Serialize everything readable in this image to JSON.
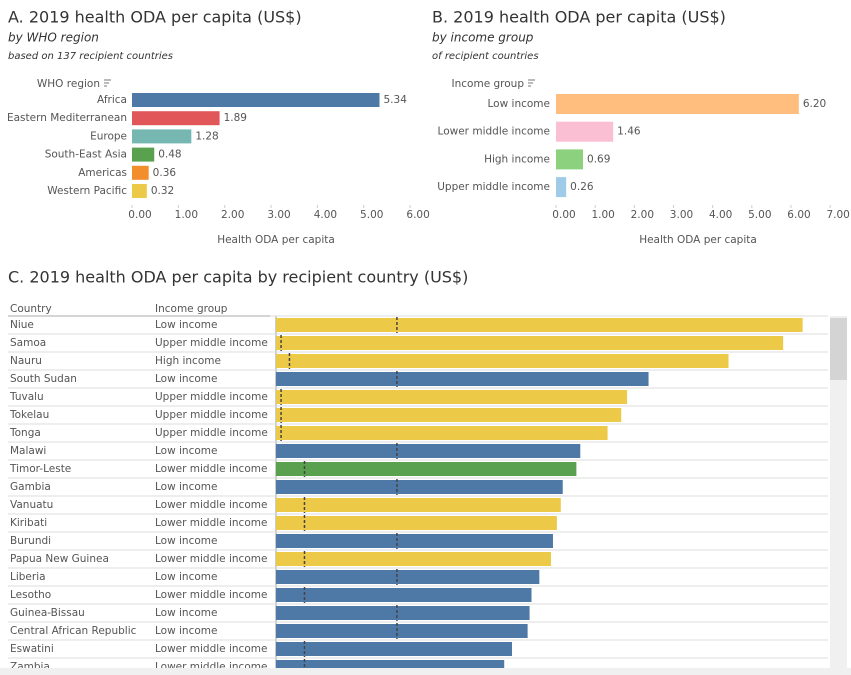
{
  "chart_data": [
    {
      "type": "hbar",
      "title": "A. 2019 health ODA per capita (US$)",
      "subtitle": "by WHO region",
      "note": "based on 137 recipient countries",
      "category_header": "WHO region",
      "x_label": "Health ODA per capita",
      "categories": [
        "Africa",
        "Eastern Mediterranean",
        "Europe",
        "South-East Asia",
        "Americas",
        "Western Pacific"
      ],
      "values": [
        5.34,
        1.89,
        1.28,
        0.48,
        0.36,
        0.32
      ],
      "value_labels": [
        "5.34",
        "1.89",
        "1.28",
        "0.48",
        "0.36",
        "0.32"
      ],
      "colors": [
        "#4e79a7",
        "#e15759",
        "#76b7b2",
        "#59a14f",
        "#f28e2b",
        "#edc948"
      ],
      "xlim": [
        0,
        6.3
      ],
      "xticks": [
        {
          "value": 0,
          "label": "0.00"
        },
        {
          "value": 1,
          "label": "1.00"
        },
        {
          "value": 2,
          "label": "2.00"
        },
        {
          "value": 3,
          "label": "3.00"
        },
        {
          "value": 4,
          "label": "4.00"
        },
        {
          "value": 5,
          "label": "5.00"
        },
        {
          "value": 6,
          "label": "6.00"
        }
      ]
    },
    {
      "type": "hbar",
      "title": "B. 2019 health ODA per capita (US$)",
      "subtitle": "by income group",
      "note": "of recipient countries",
      "category_header": "Income group",
      "x_label": "Health ODA per capita",
      "categories": [
        "Low income",
        "Lower middle income",
        "High income",
        "Upper middle income"
      ],
      "values": [
        6.2,
        1.46,
        0.69,
        0.26
      ],
      "value_labels": [
        "6.20",
        "1.46",
        "0.69",
        "0.26"
      ],
      "colors": [
        "#ffbe7d",
        "#fabfd2",
        "#8cd17d",
        "#a0cbe8"
      ],
      "xlim": [
        0,
        7.2
      ],
      "xticks": [
        {
          "value": 0,
          "label": "0.00"
        },
        {
          "value": 1,
          "label": "1.00"
        },
        {
          "value": 2,
          "label": "2.00"
        },
        {
          "value": 3,
          "label": "3.00"
        },
        {
          "value": 4,
          "label": "4.00"
        },
        {
          "value": 5,
          "label": "5.00"
        },
        {
          "value": 6,
          "label": "6.00"
        },
        {
          "value": 7,
          "label": "7.00"
        }
      ]
    },
    {
      "type": "table-bar",
      "title": "C. 2019 health ODA per capita by recipient country (US$)",
      "columns": [
        "Country",
        "Income group"
      ],
      "categories": [
        "Niue",
        "Samoa",
        "Nauru",
        "South Sudan",
        "Tuvalu",
        "Tokelau",
        "Tonga",
        "Malawi",
        "Timor-Leste",
        "Gambia",
        "Vanuatu",
        "Kiribati",
        "Burundi",
        "Papua New Guinea",
        "Liberia",
        "Lesotho",
        "Guinea-Bissau",
        "Central African Republic",
        "Eswatini",
        "Zambia"
      ],
      "income_groups": [
        "Low income",
        "Upper middle income",
        "High income",
        "Low income",
        "Upper middle income",
        "Upper middle income",
        "Upper middle income",
        "Low income",
        "Lower middle income",
        "Low income",
        "Lower middle income",
        "Lower middle income",
        "Low income",
        "Lower middle income",
        "Low income",
        "Lower middle income",
        "Low income",
        "Low income",
        "Lower middle income",
        "Lower middle income"
      ],
      "values": [
        27.0,
        26.0,
        23.2,
        19.1,
        18.0,
        17.7,
        17.0,
        15.6,
        15.4,
        14.7,
        14.6,
        14.4,
        14.2,
        14.1,
        13.5,
        13.1,
        13.0,
        12.9,
        12.1,
        11.7
      ],
      "colors": [
        "#edc948",
        "#edc948",
        "#edc948",
        "#4e79a7",
        "#edc948",
        "#edc948",
        "#edc948",
        "#4e79a7",
        "#59a14f",
        "#4e79a7",
        "#edc948",
        "#edc948",
        "#4e79a7",
        "#edc948",
        "#4e79a7",
        "#4e79a7",
        "#4e79a7",
        "#4e79a7",
        "#4e79a7",
        "#4e79a7"
      ],
      "xlim": [
        0,
        28.3
      ]
    }
  ]
}
